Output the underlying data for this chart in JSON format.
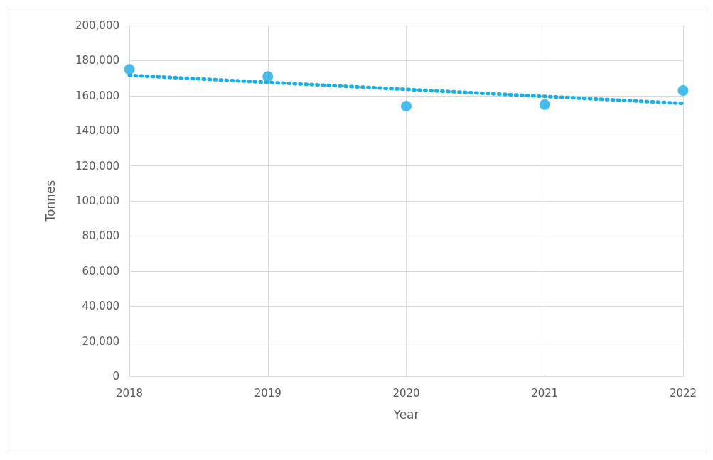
{
  "chart_data": {
    "type": "scatter",
    "xlabel": "Year",
    "ylabel": "Tonnes",
    "x": [
      2018,
      2019,
      2020,
      2021,
      2022
    ],
    "series": [
      {
        "color": "#1aade6",
        "marker": "circle",
        "values": [
          175000,
          171000,
          154000,
          155000,
          163000
        ]
      },
      {
        "type": "line",
        "color": "#1aade6",
        "marker": "none",
        "line_style": "dotted",
        "x": [
          2018,
          2022
        ],
        "values": [
          171600,
          155600
        ]
      }
    ],
    "xlim": [
      2018,
      2022
    ],
    "xticks": [
      2018,
      2019,
      2020,
      2021,
      2022
    ],
    "ylim": [
      0,
      200000
    ],
    "yticks": [
      0,
      {
        "value": 20000,
        "label": "20,000"
      },
      {
        "value": 40000,
        "label": "40,000"
      },
      {
        "value": 60000,
        "label": "60,000"
      },
      {
        "value": 80000,
        "label": "80,000"
      },
      {
        "value": 100000,
        "label": "100,000"
      },
      {
        "value": 120000,
        "label": "120,000"
      },
      {
        "value": 140000,
        "label": "140,000"
      },
      {
        "value": 160000,
        "label": "160,000"
      },
      {
        "value": 180000,
        "label": "180,000"
      },
      {
        "value": 200000,
        "label": "200,000"
      }
    ],
    "grid": true
  }
}
